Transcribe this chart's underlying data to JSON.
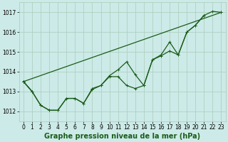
{
  "xlabel": "Graphe pression niveau de la mer (hPa)",
  "line_color": "#1a5c1a",
  "bg_color": "#cceae7",
  "grid_color": "#aaccbb",
  "ylim": [
    1011.5,
    1017.5
  ],
  "yticks": [
    1012,
    1013,
    1014,
    1015,
    1016,
    1017
  ],
  "xticks": [
    0,
    1,
    2,
    3,
    4,
    5,
    6,
    7,
    8,
    9,
    10,
    11,
    12,
    13,
    14,
    15,
    16,
    17,
    18,
    19,
    20,
    21,
    22,
    23
  ],
  "series": [
    {
      "x": [
        0,
        1
      ],
      "y": [
        1013.5,
        1013.0
      ]
    },
    {
      "x": [
        0,
        1,
        2,
        3,
        4,
        5,
        6,
        7,
        8,
        9,
        10,
        11,
        12,
        13,
        14,
        15,
        16,
        17,
        18,
        19,
        20,
        21
      ],
      "y": [
        1013.5,
        1013.0,
        1012.3,
        1012.05,
        1012.05,
        1012.65,
        1012.65,
        1012.4,
        1013.15,
        1013.3,
        1013.75,
        1013.75,
        1013.3,
        1013.15,
        1013.3,
        1014.6,
        1014.8,
        1015.05,
        1014.85,
        1016.0,
        1016.35,
        1016.85
      ]
    },
    {
      "x": [
        0,
        1,
        2,
        3,
        4,
        5,
        6,
        7,
        8,
        9,
        10,
        11,
        12,
        13,
        14,
        15,
        16,
        17,
        18,
        19,
        20,
        21,
        22,
        23
      ],
      "y": [
        1013.5,
        1013.0,
        1012.3,
        1012.05,
        1012.05,
        1012.65,
        1012.65,
        1012.4,
        1013.1,
        1013.3,
        1013.8,
        1014.1,
        1014.5,
        1013.85,
        1013.3,
        1014.6,
        1014.85,
        1015.5,
        1014.85,
        1016.0,
        1016.35,
        1016.85,
        1017.05,
        1017.0
      ]
    },
    {
      "x": [
        0,
        23
      ],
      "y": [
        1013.5,
        1017.0
      ]
    }
  ],
  "marker": "+",
  "markersize": 3,
  "linewidth": 0.9,
  "xlabel_fontsize": 7,
  "tick_fontsize": 5.5
}
